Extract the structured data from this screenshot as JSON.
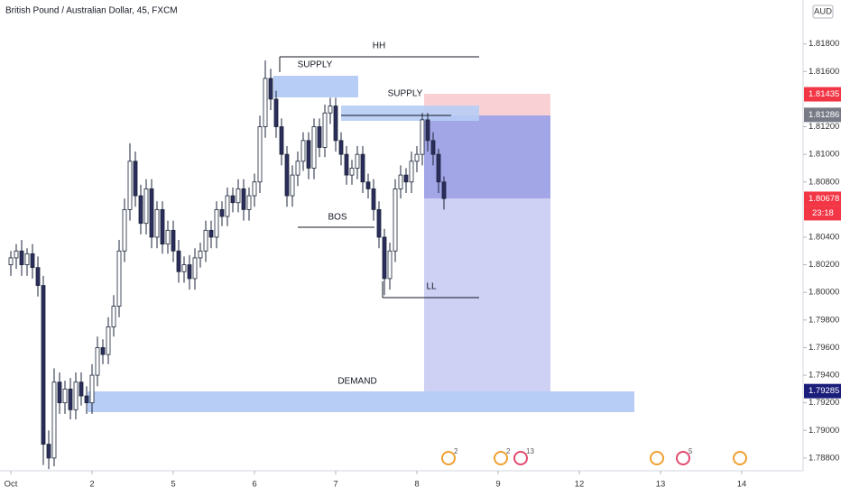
{
  "chart_data": {
    "type": "candlestick",
    "title": "British Pound / Australian Dollar, 45, FXCM",
    "currency": "AUD",
    "x": [
      0,
      2,
      4,
      6,
      8,
      10,
      12,
      14,
      16,
      18,
      20,
      22,
      24,
      26,
      28,
      30,
      32,
      34,
      36,
      38,
      40,
      42,
      44,
      46,
      48,
      50,
      52,
      54,
      56,
      58,
      60,
      62,
      64,
      66,
      68,
      70,
      72,
      74,
      76,
      78,
      80,
      82,
      84,
      86,
      88,
      90,
      92,
      94,
      96,
      98,
      100,
      102,
      104,
      106,
      108,
      110,
      112,
      114,
      116,
      118,
      120,
      122,
      124,
      126,
      128,
      130,
      132,
      134,
      136,
      138,
      140,
      142,
      144,
      146,
      148,
      150,
      152,
      154,
      156,
      158,
      160
    ],
    "open": [
      1.802,
      1.8025,
      1.803,
      1.802,
      1.8028,
      1.8018,
      1.8005,
      1.789,
      1.788,
      1.7935,
      1.792,
      1.793,
      1.7915,
      1.7935,
      1.7925,
      1.792,
      1.794,
      1.796,
      1.7955,
      1.7975,
      1.799,
      1.803,
      1.806,
      1.8095,
      1.807,
      1.805,
      1.8075,
      1.804,
      1.806,
      1.8035,
      1.8045,
      1.803,
      1.8015,
      1.802,
      1.801,
      1.8025,
      1.803,
      1.8045,
      1.804,
      1.806,
      1.8055,
      1.807,
      1.8065,
      1.8075,
      1.806,
      1.807,
      1.808,
      1.812,
      1.8155,
      1.814,
      1.812,
      1.81,
      1.807,
      1.8085,
      1.8095,
      1.811,
      1.809,
      1.812,
      1.8105,
      1.813,
      1.8135,
      1.811,
      1.81,
      1.8085,
      1.809,
      1.81,
      1.808,
      1.8075,
      1.806,
      1.804,
      1.801,
      1.803,
      1.8075,
      1.8085,
      1.808,
      1.8095,
      1.81,
      1.8125,
      1.811,
      1.81,
      1.808
    ],
    "high": [
      1.803,
      1.8035,
      1.8038,
      1.8032,
      1.8035,
      1.8026,
      1.8012,
      1.79,
      1.7945,
      1.7942,
      1.7936,
      1.7938,
      1.7942,
      1.7942,
      1.7932,
      1.7948,
      1.7968,
      1.7966,
      1.7982,
      1.7998,
      1.8038,
      1.8068,
      1.8108,
      1.8102,
      1.8078,
      1.8082,
      1.8082,
      1.8066,
      1.8066,
      1.8052,
      1.8052,
      1.8038,
      1.8026,
      1.8027,
      1.8032,
      1.8036,
      1.8052,
      1.8052,
      1.8066,
      1.8066,
      1.8076,
      1.8076,
      1.8082,
      1.8082,
      1.8076,
      1.8086,
      1.8128,
      1.8168,
      1.8162,
      1.8146,
      1.8126,
      1.8106,
      1.8092,
      1.8102,
      1.8116,
      1.8116,
      1.8126,
      1.8126,
      1.8136,
      1.8141,
      1.8141,
      1.8116,
      1.8106,
      1.8096,
      1.8106,
      1.8106,
      1.8086,
      1.8082,
      1.8066,
      1.8046,
      1.8036,
      1.8082,
      1.8092,
      1.809,
      1.8102,
      1.8106,
      1.813,
      1.813,
      1.8116,
      1.8104,
      1.8084
    ],
    "low": [
      1.8012,
      1.8017,
      1.8012,
      1.8012,
      1.801,
      1.7997,
      1.7875,
      1.7872,
      1.7874,
      1.7912,
      1.7912,
      1.7908,
      1.7908,
      1.7918,
      1.7912,
      1.7912,
      1.7932,
      1.7948,
      1.7948,
      1.7968,
      1.7982,
      1.8022,
      1.8052,
      1.8062,
      1.8042,
      1.8042,
      1.8032,
      1.8032,
      1.8028,
      1.8028,
      1.8022,
      1.8007,
      1.8007,
      1.8002,
      1.8002,
      1.8018,
      1.8022,
      1.8032,
      1.8032,
      1.8048,
      1.8048,
      1.8058,
      1.8058,
      1.8052,
      1.8052,
      1.8062,
      1.8072,
      1.8112,
      1.8132,
      1.8112,
      1.8092,
      1.8062,
      1.8062,
      1.8077,
      1.8088,
      1.8082,
      1.8082,
      1.8098,
      1.8098,
      1.8122,
      1.8102,
      1.8092,
      1.8078,
      1.8078,
      1.8082,
      1.8072,
      1.8068,
      1.8052,
      1.8032,
      1.7998,
      1.8002,
      1.8022,
      1.8068,
      1.8072,
      1.8072,
      1.8087,
      1.8092,
      1.8102,
      1.8092,
      1.8072,
      1.806
    ],
    "close": [
      1.8025,
      1.803,
      1.802,
      1.8028,
      1.8018,
      1.8005,
      1.789,
      1.788,
      1.7935,
      1.792,
      1.793,
      1.7915,
      1.7935,
      1.7925,
      1.792,
      1.794,
      1.796,
      1.7955,
      1.7975,
      1.799,
      1.803,
      1.806,
      1.8095,
      1.807,
      1.805,
      1.8075,
      1.804,
      1.806,
      1.8035,
      1.8045,
      1.803,
      1.8015,
      1.802,
      1.801,
      1.8025,
      1.803,
      1.8045,
      1.804,
      1.806,
      1.8055,
      1.807,
      1.8065,
      1.8075,
      1.806,
      1.807,
      1.808,
      1.812,
      1.8155,
      1.814,
      1.812,
      1.81,
      1.807,
      1.8085,
      1.8095,
      1.811,
      1.809,
      1.812,
      1.8105,
      1.813,
      1.8135,
      1.811,
      1.81,
      1.8085,
      1.809,
      1.81,
      1.808,
      1.8075,
      1.806,
      1.804,
      1.801,
      1.803,
      1.8075,
      1.8085,
      1.808,
      1.8095,
      1.81,
      1.8125,
      1.811,
      1.81,
      1.808,
      1.8068
    ],
    "up_color": "#ffffff",
    "down_color": "#2b2d5c",
    "wick_color": "#1a2338",
    "xlim": [
      -4,
      292.67
    ],
    "ylim": [
      1.78708,
      1.82118
    ],
    "xticks": [
      {
        "value": 0,
        "label": "Oct"
      },
      {
        "value": 30,
        "label": "2"
      },
      {
        "value": 60,
        "label": "5"
      },
      {
        "value": 90,
        "label": "6"
      },
      {
        "value": 120,
        "label": "7"
      },
      {
        "value": 150,
        "label": "8"
      },
      {
        "value": 180,
        "label": "9"
      },
      {
        "value": 210,
        "label": "12"
      },
      {
        "value": 240,
        "label": "13"
      },
      {
        "value": 270,
        "label": "14"
      }
    ],
    "yticks": [
      {
        "value": 1.788,
        "label": "1.78800"
      },
      {
        "value": 1.79,
        "label": "1.79000"
      },
      {
        "value": 1.792,
        "label": "1.79200"
      },
      {
        "value": 1.794,
        "label": "1.79400"
      },
      {
        "value": 1.796,
        "label": "1.79600"
      },
      {
        "value": 1.798,
        "label": "1.79800"
      },
      {
        "value": 1.8,
        "label": "1.80000"
      },
      {
        "value": 1.802,
        "label": "1.80200"
      },
      {
        "value": 1.804,
        "label": "1.80400"
      },
      {
        "value": 1.808,
        "label": "1.80800"
      },
      {
        "value": 1.81,
        "label": "1.81000"
      },
      {
        "value": 1.812,
        "label": "1.81200"
      },
      {
        "value": 1.816,
        "label": "1.81600"
      },
      {
        "value": 1.818,
        "label": "1.81800"
      }
    ],
    "price_badges": [
      {
        "value": 1.81435,
        "color": "#f23645"
      },
      {
        "value": 1.81286,
        "color": "#787b86"
      },
      {
        "value": 1.80678,
        "color": "#f23645"
      },
      {
        "value": 1.79285,
        "color": "#1a1d7a"
      }
    ],
    "countdown": "23:18",
    "annotations": {
      "hh": "HH",
      "supply_1": "SUPPLY",
      "supply_2": "SUPPLY",
      "bos": "BOS",
      "ll": "LL",
      "demand": "DEMAND"
    },
    "event_counts": [
      2,
      2,
      13,
      5
    ]
  }
}
